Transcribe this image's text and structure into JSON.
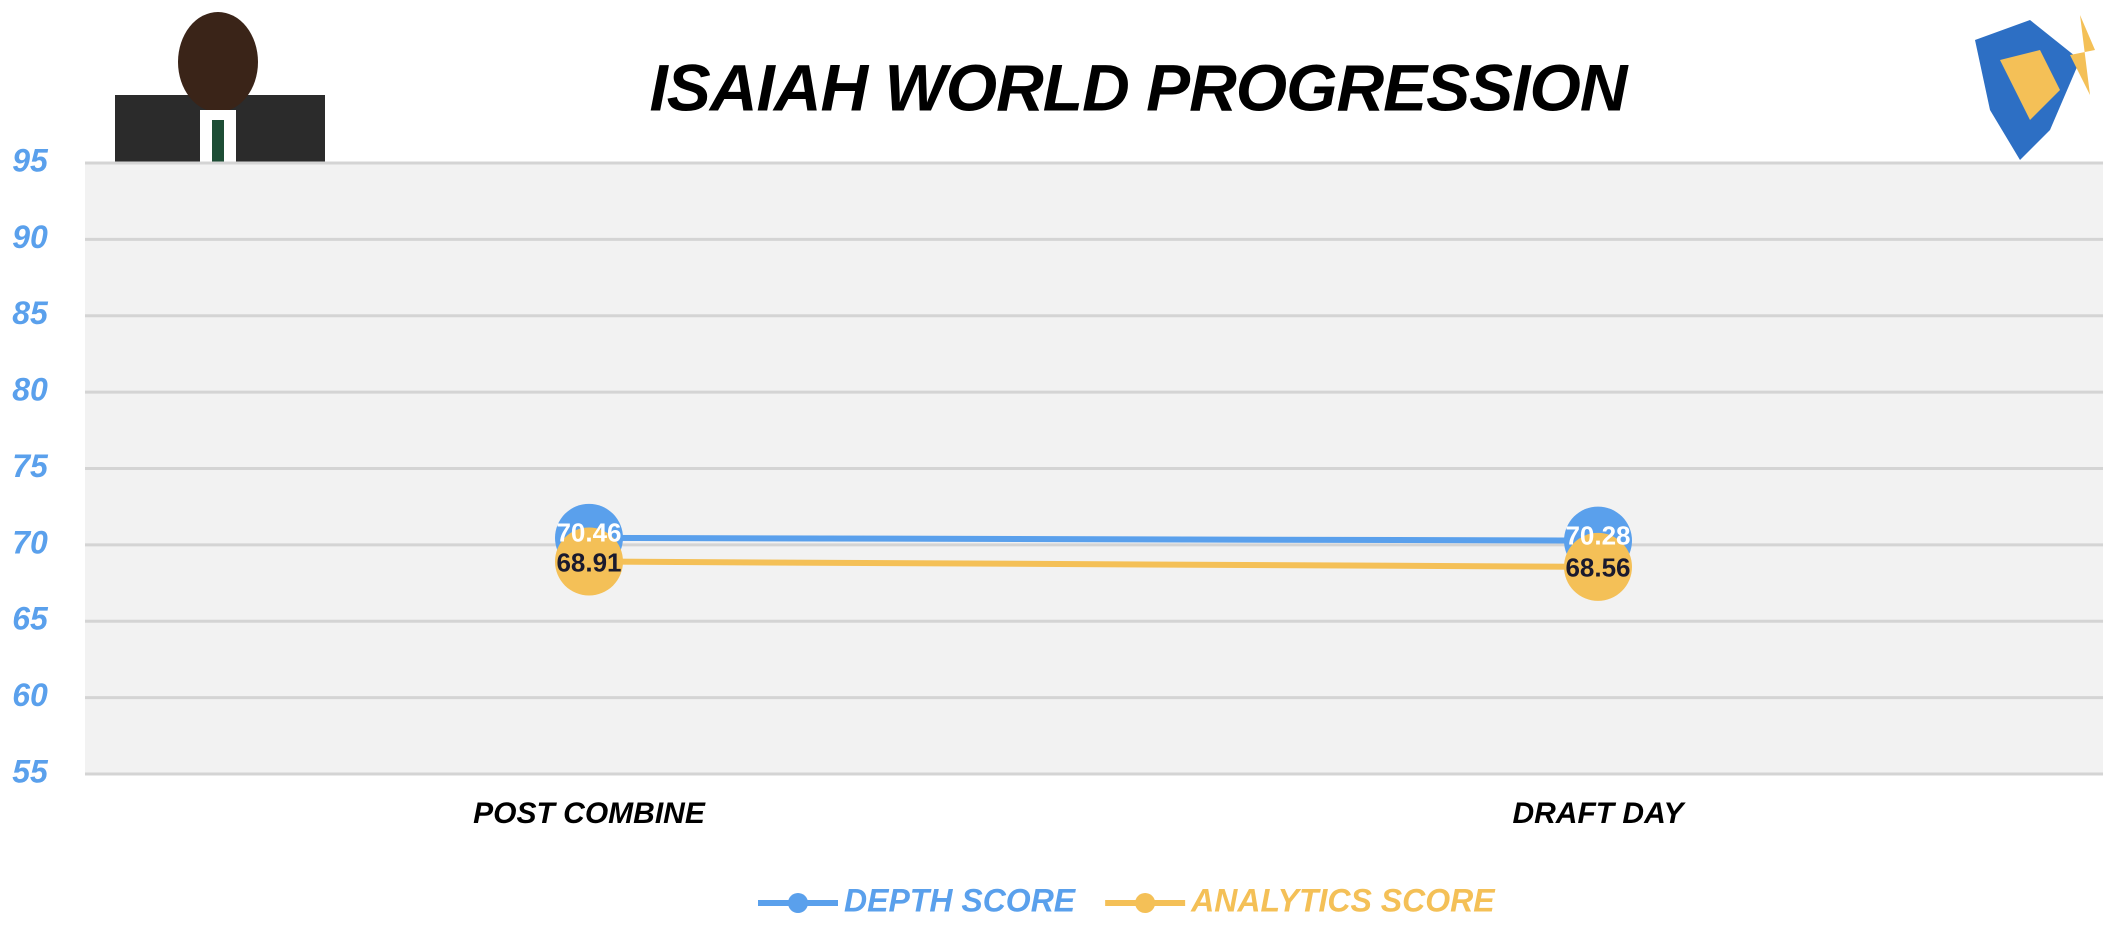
{
  "chart_data": {
    "type": "line",
    "title": "ISAIAH WORLD PROGRESSION",
    "categories": [
      "POST COMBINE",
      "DRAFT DAY"
    ],
    "series": [
      {
        "name": "DEPTH SCORE",
        "color": "#5aa0ec",
        "values": [
          70.46,
          70.28
        ]
      },
      {
        "name": "ANALYTICS SCORE",
        "color": "#f4c057",
        "values": [
          68.91,
          68.56
        ]
      }
    ],
    "ylim": [
      55,
      95
    ],
    "yticks": [
      55,
      60,
      65,
      70,
      75,
      80,
      85,
      90,
      95
    ],
    "grid": true,
    "legend": "bottom"
  }
}
